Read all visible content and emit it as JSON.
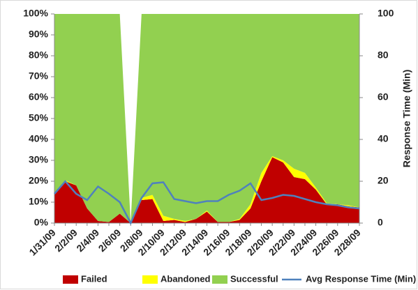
{
  "chart_data": {
    "type": "stacked_area",
    "categories": [
      "1/31/09",
      null,
      "2/2/09",
      null,
      "2/4/09",
      null,
      "2/6/09",
      null,
      "2/8/09",
      null,
      "2/10/09",
      null,
      "2/12/09",
      null,
      "2/14/09",
      null,
      "2/16/09",
      null,
      "2/18/09",
      null,
      "2/20/09",
      null,
      "2/22/09",
      null,
      "2/24/09",
      null,
      "2/26/09",
      null,
      "2/28/09"
    ],
    "series": [
      {
        "name": "Failed",
        "color": "#c00000",
        "values": [
          14,
          20,
          18,
          7,
          1,
          0.5,
          4.5,
          0,
          11,
          11.5,
          1,
          1.5,
          0.5,
          2,
          5.5,
          0.5,
          0.5,
          1.5,
          7,
          20,
          31.5,
          29,
          22,
          21,
          16,
          9,
          9,
          8,
          7.5
        ]
      },
      {
        "name": "Abandoned",
        "color": "#ffff00",
        "values": [
          0,
          0.5,
          0,
          0,
          0,
          0,
          0,
          0,
          1,
          2,
          2.5,
          0.5,
          0.5,
          0,
          0.5,
          0,
          0,
          0.5,
          2,
          4,
          0.5,
          1,
          4,
          3,
          1,
          0.5,
          0,
          0.5,
          0
        ]
      },
      {
        "name": "Successful",
        "color": "#92d050",
        "values": [
          86,
          79.5,
          82,
          93,
          99,
          99.5,
          95.5,
          0,
          88,
          86.5,
          96.5,
          98,
          99,
          98,
          94,
          99.5,
          99.5,
          98,
          91,
          76,
          68,
          70,
          74,
          76,
          83,
          90.5,
          91,
          91.5,
          92.5
        ]
      },
      {
        "name": "Avg Response Time (Min)",
        "color": "#4f81bd",
        "type": "line",
        "axis": "y2",
        "values": [
          14,
          20,
          14,
          11,
          17.5,
          14,
          10,
          0,
          12,
          19,
          19.5,
          11.5,
          10.5,
          9.5,
          10.5,
          10.5,
          13.5,
          15.5,
          19,
          11,
          12,
          13.5,
          13,
          11.5,
          10,
          9,
          8.5,
          7.5,
          7
        ]
      }
    ],
    "ylim": [
      0,
      100
    ],
    "yticks": [
      {
        "value": 0,
        "label": "0%"
      },
      {
        "value": 10,
        "label": "10%"
      },
      {
        "value": 20,
        "label": "20%"
      },
      {
        "value": 30,
        "label": "30%"
      },
      {
        "value": 40,
        "label": "40%"
      },
      {
        "value": 50,
        "label": "50%"
      },
      {
        "value": 60,
        "label": "60%"
      },
      {
        "value": 70,
        "label": "70%"
      },
      {
        "value": 80,
        "label": "80%"
      },
      {
        "value": 90,
        "label": "90%"
      },
      {
        "value": 100,
        "label": "100%"
      }
    ],
    "y2lim": [
      0,
      100
    ],
    "y2ticks": [
      0,
      20,
      40,
      60,
      80,
      100
    ],
    "y2label": "Response Time (Min)",
    "legend": "bottom"
  }
}
